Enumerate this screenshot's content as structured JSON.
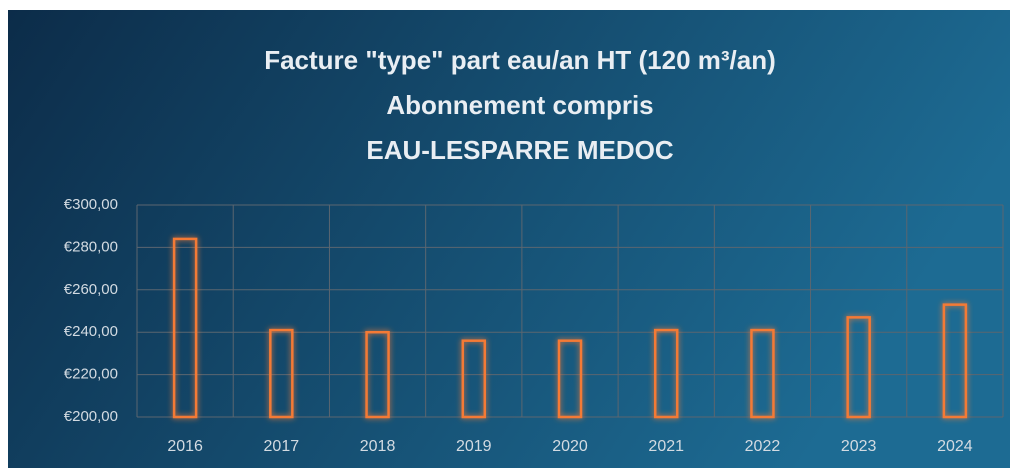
{
  "chart_data": {
    "type": "bar",
    "title": [
      "Facture \"type\" part eau/an HT (120 m³/an)",
      "Abonnement compris",
      "EAU-LESPARRE MEDOC"
    ],
    "categories": [
      "2016",
      "2017",
      "2018",
      "2019",
      "2020",
      "2021",
      "2022",
      "2023",
      "2024"
    ],
    "values": [
      284,
      241,
      240,
      236,
      236,
      241,
      241,
      247,
      253
    ],
    "color": "#f47a36",
    "ylim": [
      200,
      300
    ],
    "yticks": [
      {
        "value": 200,
        "label": "€200,00"
      },
      {
        "value": 220,
        "label": "€220,00"
      },
      {
        "value": 240,
        "label": "€240,00"
      },
      {
        "value": 260,
        "label": "€260,00"
      },
      {
        "value": 280,
        "label": "€280,00"
      },
      {
        "value": 300,
        "label": "€300,00"
      }
    ],
    "grid": true
  }
}
